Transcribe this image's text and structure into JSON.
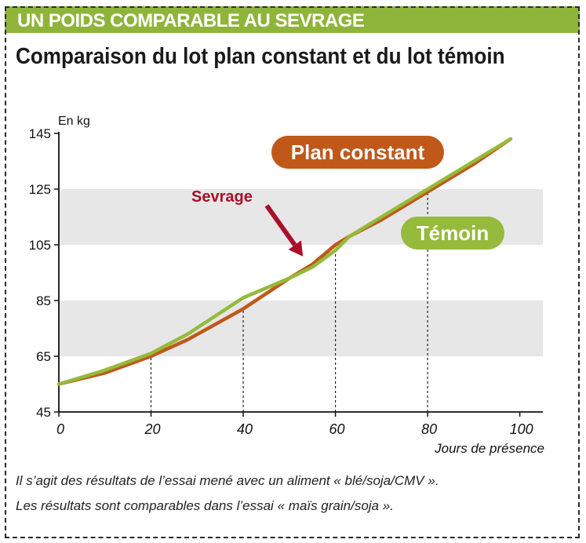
{
  "banner": {
    "text": "UN POIDS COMPARABLE AU SEVRAGE"
  },
  "header": {
    "title": "Comparaison du lot plan constant et du lot témoin"
  },
  "footnotes": [
    "Il s’agit des résultats de l’essai mené avec un aliment « blé/soja/CMV ».",
    "Les résultats sont comparables dans l’essai « maïs grain/soja »."
  ],
  "colors": {
    "banner": "#8fb43a",
    "plan_constant": "#c0581a",
    "temoin": "#95ba3c",
    "arrow": "#a8102a",
    "band": "#e7e7e7"
  },
  "chart_data": {
    "type": "line",
    "ylabel": "En kg",
    "xlabel": "Jours de présence",
    "xlim": [
      0,
      105
    ],
    "ylim": [
      45,
      145
    ],
    "x_ticks": [
      0,
      20,
      40,
      60,
      80,
      100
    ],
    "y_ticks": [
      45,
      65,
      85,
      105,
      125,
      145
    ],
    "series": [
      {
        "name": "Plan constant",
        "points": [
          [
            0,
            55
          ],
          [
            10,
            59
          ],
          [
            20,
            65
          ],
          [
            28,
            71
          ],
          [
            40,
            82
          ],
          [
            50,
            93
          ],
          [
            55,
            98
          ],
          [
            60,
            105
          ],
          [
            63,
            108
          ],
          [
            70,
            114
          ],
          [
            80,
            124
          ],
          [
            90,
            134
          ],
          [
            98,
            143
          ]
        ]
      },
      {
        "name": "Témoin",
        "points": [
          [
            0,
            55
          ],
          [
            10,
            60
          ],
          [
            20,
            66
          ],
          [
            28,
            73
          ],
          [
            40,
            86
          ],
          [
            50,
            93
          ],
          [
            55,
            97
          ],
          [
            60,
            103
          ],
          [
            63,
            108
          ],
          [
            70,
            115
          ],
          [
            80,
            125
          ],
          [
            90,
            135
          ],
          [
            98,
            143
          ]
        ]
      }
    ],
    "annotations": [
      {
        "text": "Sevrage",
        "arrow_to": [
          55,
          98
        ]
      }
    ],
    "guide_lines_at_x": [
      20,
      40,
      60,
      80
    ]
  }
}
